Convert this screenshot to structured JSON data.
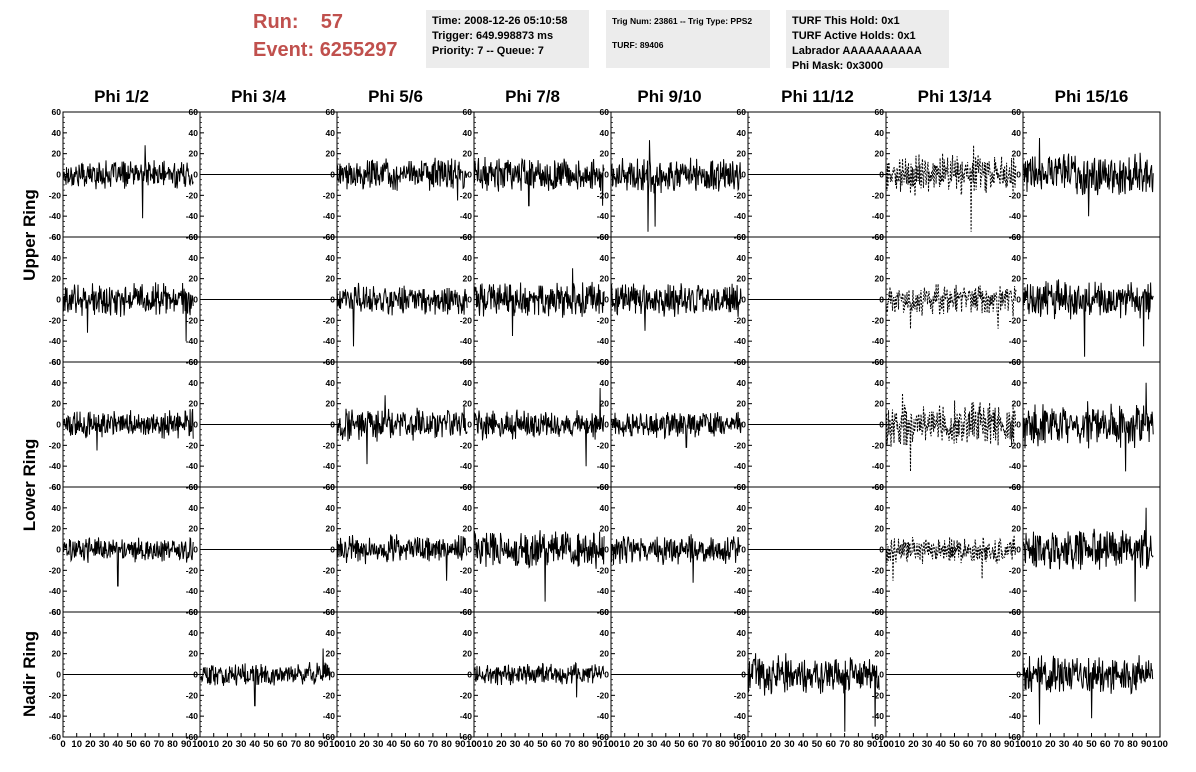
{
  "header": {
    "run_label": "Run:",
    "run_value": "57",
    "event_label": "Event:",
    "event_value": "6255297"
  },
  "info_box_1": {
    "time": "Time: 2008-12-26 05:10:58",
    "trigger": "Trigger: 649.998873 ms",
    "priority": "Priority: 7 -- Queue: 7"
  },
  "info_box_2": {
    "trig": "Trig Num: 23861 -- Trig Type: PPS2",
    "turf": "TURF: 89406"
  },
  "info_box_3": {
    "hold": "TURF This Hold: 0x1",
    "active": "TURF Active Holds: 0x1",
    "labrador": "Labrador AAAAAAAAAA",
    "phi_mask": "Phi Mask: 0x3000"
  },
  "column_labels": [
    "Phi 1/2",
    "Phi 3/4",
    "Phi 5/6",
    "Phi 7/8",
    "Phi 9/10",
    "Phi 11/12",
    "Phi 13/14",
    "Phi 15/16"
  ],
  "row_labels": [
    "Upper Ring",
    "Lower Ring",
    "Nadir Ring"
  ],
  "chart_data": {
    "type": "line",
    "grid": false,
    "xlim": [
      0,
      100
    ],
    "ylim": [
      -60,
      60
    ],
    "x_ticks": [
      0,
      10,
      20,
      30,
      40,
      50,
      60,
      70,
      80,
      90,
      100
    ],
    "y_ticks": [
      -60,
      -40,
      -20,
      0,
      20,
      40,
      60
    ],
    "panel_rows": 5,
    "panel_cols": 8,
    "waveforms": [
      {
        "row": 1,
        "col": 1,
        "style": "solid",
        "amp": 10,
        "spikes": [
          [
            58,
            -42
          ],
          [
            60,
            28
          ]
        ]
      },
      {
        "row": 1,
        "col": 2,
        "style": "flat"
      },
      {
        "row": 1,
        "col": 3,
        "style": "solid",
        "amp": 11,
        "spikes": [
          [
            88,
            -25
          ]
        ]
      },
      {
        "row": 1,
        "col": 4,
        "style": "solid",
        "amp": 12,
        "spikes": [
          [
            40,
            -30
          ],
          [
            94,
            -30
          ]
        ]
      },
      {
        "row": 1,
        "col": 5,
        "style": "solid",
        "amp": 13,
        "spikes": [
          [
            27,
            -55
          ],
          [
            28,
            33
          ],
          [
            32,
            -50
          ]
        ]
      },
      {
        "row": 1,
        "col": 6,
        "style": "flat"
      },
      {
        "row": 1,
        "col": 7,
        "style": "dashed",
        "amp": 14,
        "spikes": [
          [
            62,
            -55
          ],
          [
            64,
            28
          ]
        ]
      },
      {
        "row": 1,
        "col": 8,
        "style": "solid",
        "amp": 15,
        "spikes": [
          [
            48,
            -40
          ],
          [
            12,
            35
          ]
        ]
      },
      {
        "row": 2,
        "col": 1,
        "style": "solid",
        "amp": 12,
        "spikes": [
          [
            18,
            -32
          ],
          [
            90,
            -40
          ]
        ]
      },
      {
        "row": 2,
        "col": 2,
        "style": "flat"
      },
      {
        "row": 2,
        "col": 3,
        "style": "solid",
        "amp": 11,
        "spikes": [
          [
            12,
            -45
          ]
        ]
      },
      {
        "row": 2,
        "col": 4,
        "style": "solid",
        "amp": 12,
        "spikes": [
          [
            72,
            30
          ],
          [
            28,
            -35
          ]
        ]
      },
      {
        "row": 2,
        "col": 5,
        "style": "solid",
        "amp": 12,
        "spikes": [
          [
            25,
            -30
          ]
        ]
      },
      {
        "row": 2,
        "col": 6,
        "style": "flat"
      },
      {
        "row": 2,
        "col": 7,
        "style": "dashed",
        "amp": 11,
        "spikes": [
          [
            18,
            -28
          ],
          [
            82,
            -28
          ]
        ]
      },
      {
        "row": 2,
        "col": 8,
        "style": "solid",
        "amp": 14,
        "spikes": [
          [
            45,
            -55
          ],
          [
            88,
            -45
          ]
        ]
      },
      {
        "row": 3,
        "col": 1,
        "style": "solid",
        "amp": 10,
        "spikes": [
          [
            25,
            -25
          ]
        ]
      },
      {
        "row": 3,
        "col": 2,
        "style": "flat"
      },
      {
        "row": 3,
        "col": 3,
        "style": "solid",
        "amp": 12,
        "spikes": [
          [
            35,
            28
          ],
          [
            22,
            -38
          ]
        ]
      },
      {
        "row": 3,
        "col": 4,
        "style": "solid",
        "amp": 11,
        "spikes": [
          [
            82,
            -40
          ],
          [
            92,
            35
          ]
        ]
      },
      {
        "row": 3,
        "col": 5,
        "style": "solid",
        "amp": 9,
        "spikes": [
          [
            55,
            -22
          ]
        ]
      },
      {
        "row": 3,
        "col": 6,
        "style": "flat"
      },
      {
        "row": 3,
        "col": 7,
        "style": "dashed",
        "amp": 16,
        "spikes": [
          [
            18,
            -45
          ],
          [
            12,
            30
          ]
        ]
      },
      {
        "row": 3,
        "col": 8,
        "style": "solid",
        "amp": 16,
        "spikes": [
          [
            90,
            40
          ],
          [
            75,
            -45
          ]
        ]
      },
      {
        "row": 4,
        "col": 1,
        "style": "solid",
        "amp": 9,
        "spikes": [
          [
            40,
            -35
          ]
        ]
      },
      {
        "row": 4,
        "col": 2,
        "style": "flat"
      },
      {
        "row": 4,
        "col": 3,
        "style": "solid",
        "amp": 10,
        "spikes": [
          [
            80,
            -30
          ]
        ]
      },
      {
        "row": 4,
        "col": 4,
        "style": "solid",
        "amp": 13,
        "spikes": [
          [
            52,
            -50
          ],
          [
            96,
            -40
          ]
        ]
      },
      {
        "row": 4,
        "col": 5,
        "style": "solid",
        "amp": 11,
        "spikes": [
          [
            60,
            -32
          ]
        ]
      },
      {
        "row": 4,
        "col": 6,
        "style": "flat"
      },
      {
        "row": 4,
        "col": 7,
        "style": "dashed",
        "amp": 10,
        "spikes": [
          [
            5,
            -30
          ],
          [
            70,
            -28
          ]
        ]
      },
      {
        "row": 4,
        "col": 8,
        "style": "solid",
        "amp": 14,
        "spikes": [
          [
            90,
            40
          ],
          [
            82,
            -50
          ]
        ]
      },
      {
        "row": 5,
        "col": 1,
        "style": "flat"
      },
      {
        "row": 5,
        "col": 2,
        "style": "solid",
        "amp": 8,
        "spikes": [
          [
            40,
            -30
          ],
          [
            90,
            25
          ]
        ]
      },
      {
        "row": 5,
        "col": 3,
        "style": "flat"
      },
      {
        "row": 5,
        "col": 4,
        "style": "solid",
        "amp": 8,
        "spikes": [
          [
            75,
            -22
          ]
        ]
      },
      {
        "row": 5,
        "col": 5,
        "style": "flat"
      },
      {
        "row": 5,
        "col": 6,
        "style": "solid",
        "amp": 14,
        "spikes": [
          [
            70,
            -55
          ],
          [
            92,
            -50
          ]
        ]
      },
      {
        "row": 5,
        "col": 7,
        "style": "flat"
      },
      {
        "row": 5,
        "col": 8,
        "style": "solid",
        "amp": 14,
        "spikes": [
          [
            12,
            -48
          ],
          [
            50,
            -42
          ]
        ]
      }
    ]
  }
}
